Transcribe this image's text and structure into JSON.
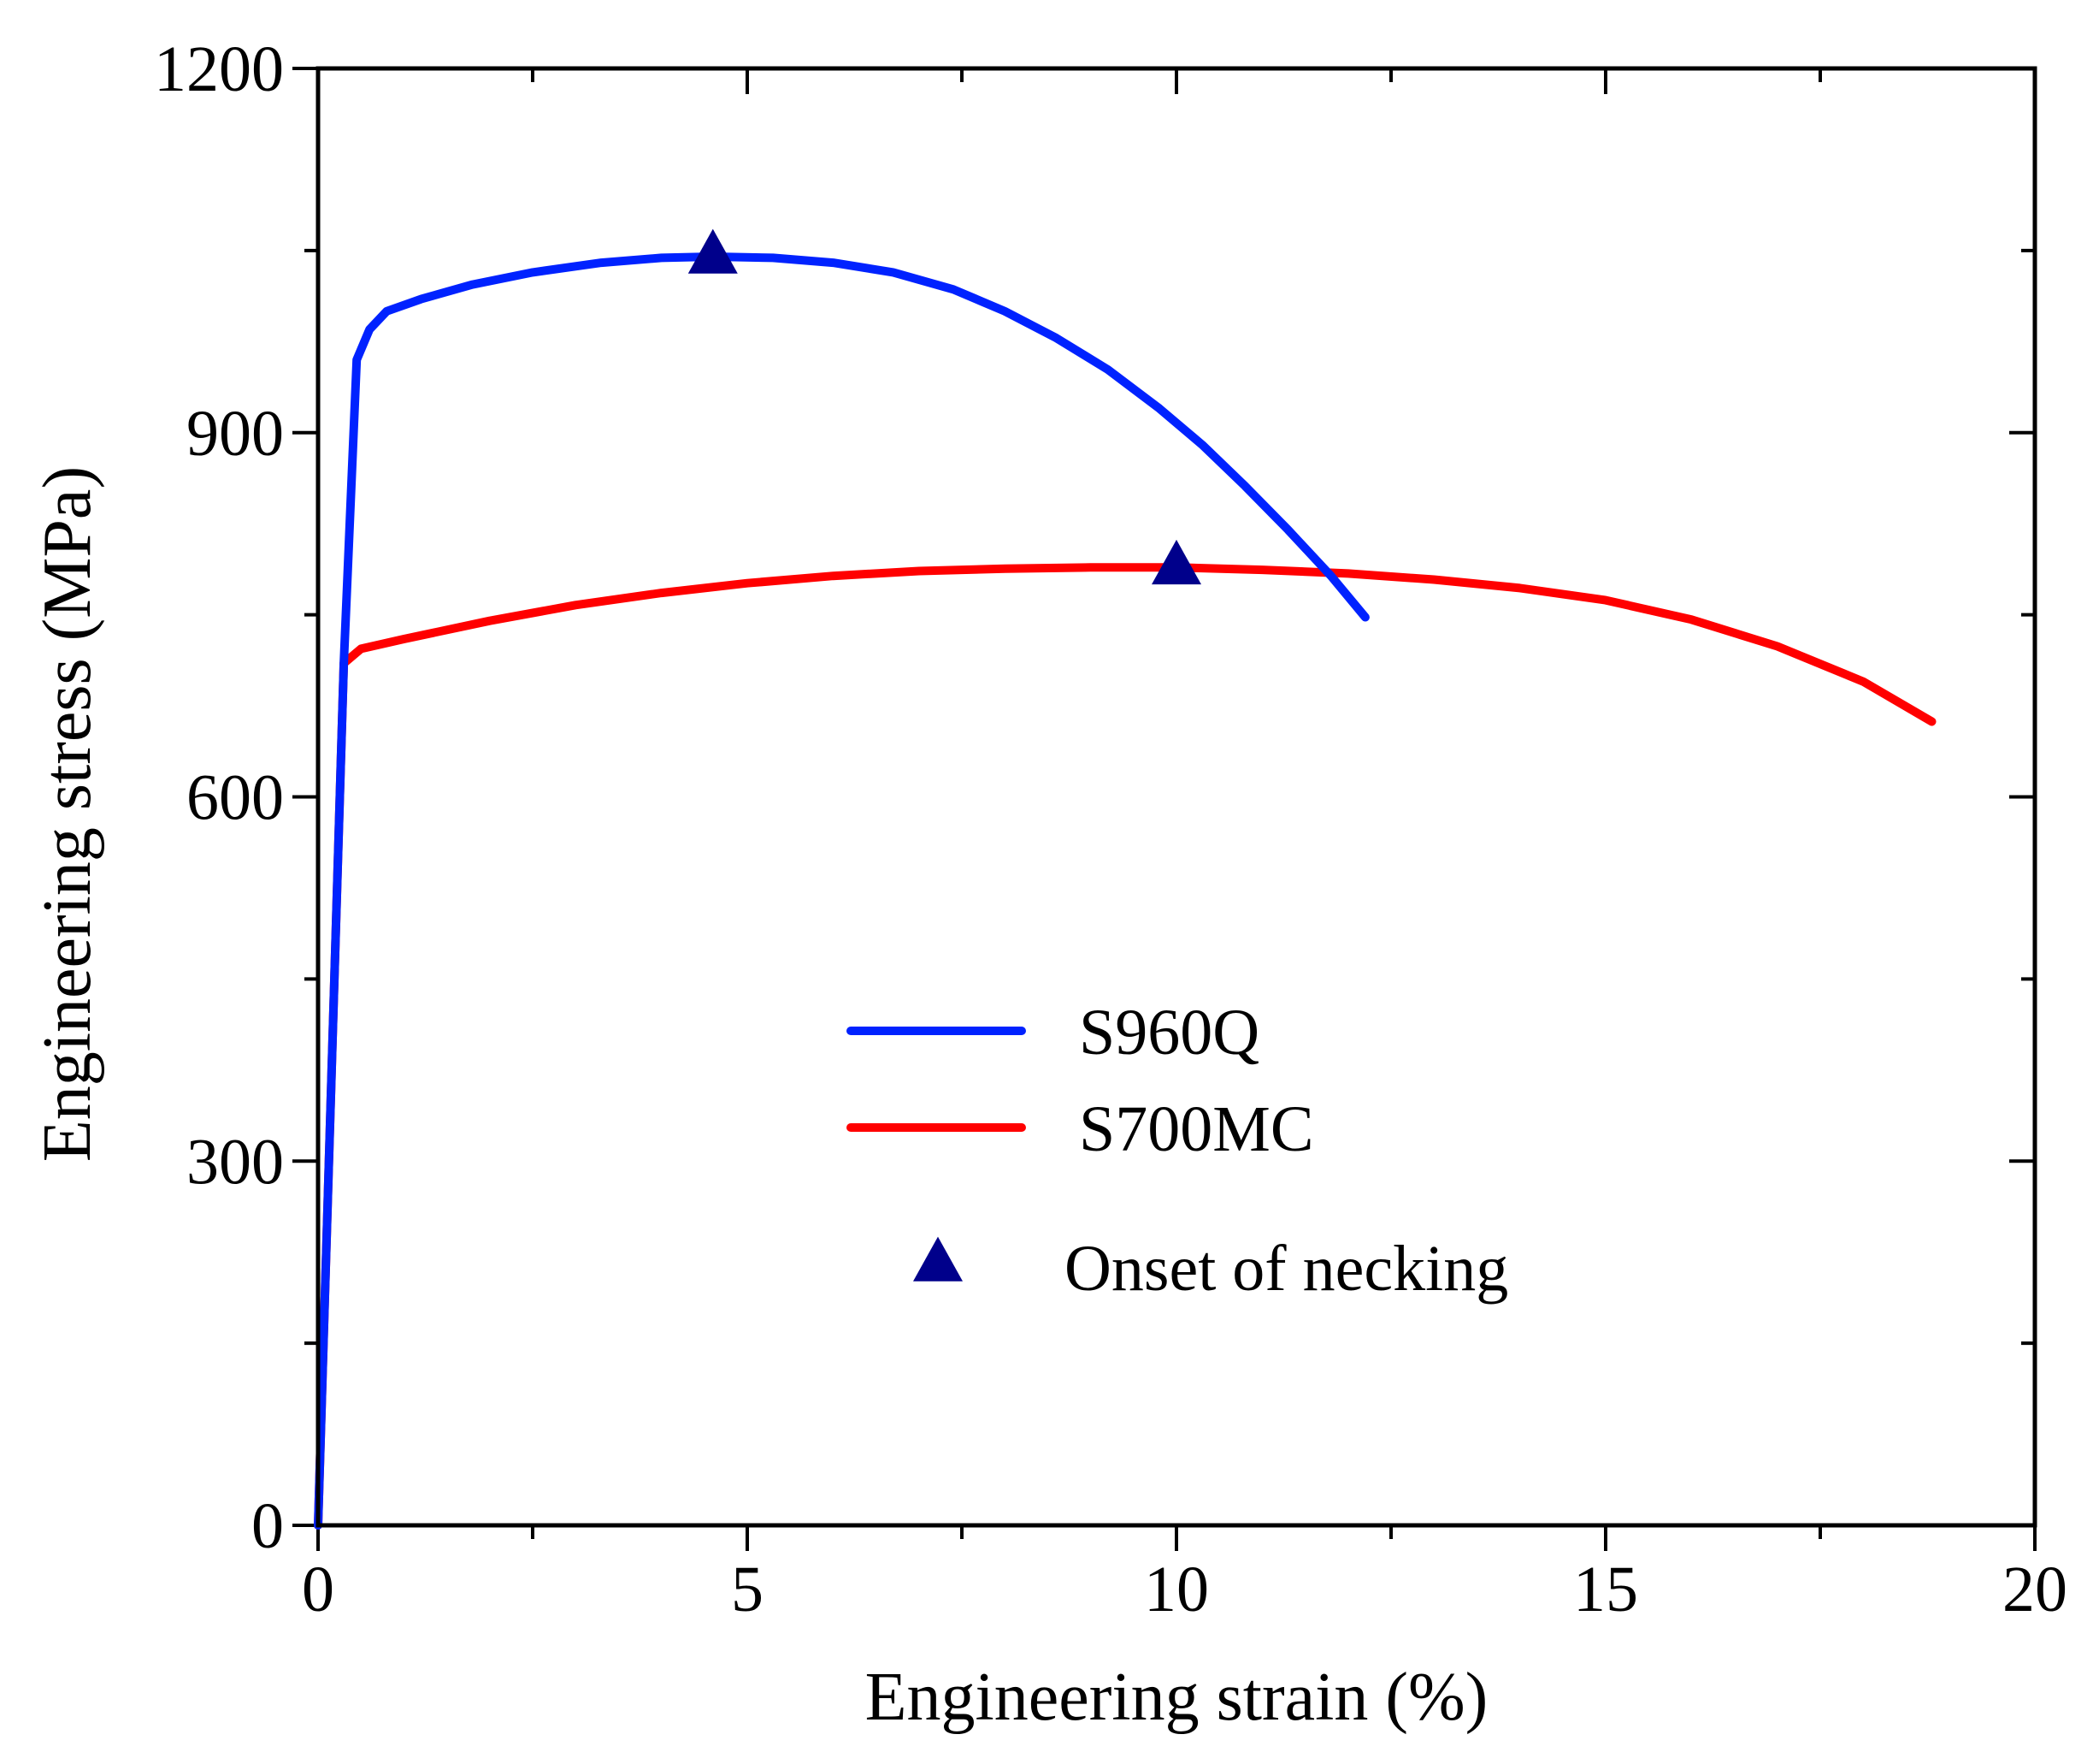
{
  "colors": {
    "s960q": "#0022ff",
    "s700mc": "#ff0000",
    "marker": "#00008b",
    "axis": "#000000"
  },
  "chart_data": {
    "type": "line",
    "title": "",
    "xlabel": "Engineering strain (%)",
    "ylabel": "Engineering stress (MPa)",
    "xlim": [
      0,
      20
    ],
    "ylim": [
      0,
      1200
    ],
    "xticks": [
      0,
      5,
      10,
      15,
      20
    ],
    "xtick_labels": [
      "0",
      "5",
      "10",
      "15",
      "20"
    ],
    "yticks": [
      0,
      300,
      600,
      900,
      1200
    ],
    "ytick_labels": [
      "0",
      "300",
      "600",
      "900",
      "1200"
    ],
    "grid": false,
    "legend_position": "center",
    "series": [
      {
        "name": "S960Q",
        "x": [
          0,
          0.3,
          0.45,
          0.6,
          0.8,
          1.2,
          1.8,
          2.5,
          3.3,
          4.0,
          4.6,
          5.3,
          6.0,
          6.7,
          7.4,
          8.0,
          8.6,
          9.2,
          9.8,
          10.3,
          10.8,
          11.3,
          11.8,
          12.2
        ],
        "y": [
          0,
          710,
          960,
          985,
          1000,
          1010,
          1022,
          1032,
          1040,
          1044,
          1045,
          1044,
          1040,
          1032,
          1018,
          1000,
          978,
          952,
          920,
          890,
          856,
          820,
          782,
          748
        ]
      },
      {
        "name": "S700MC",
        "x": [
          0,
          0.3,
          0.5,
          1.0,
          2.0,
          3.0,
          4.0,
          5.0,
          6.0,
          7.0,
          8.0,
          9.0,
          10.0,
          11.0,
          12.0,
          13.0,
          14.0,
          15.0,
          16.0,
          17.0,
          18.0,
          18.8
        ],
        "y": [
          0,
          710,
          722,
          730,
          745,
          758,
          768,
          776,
          782,
          786,
          788,
          789,
          789,
          787,
          784,
          779,
          772,
          762,
          746,
          724,
          695,
          662
        ]
      }
    ],
    "markers": {
      "name": "Onset of necking",
      "shape": "triangle",
      "points": [
        {
          "x": 4.6,
          "y": 1045
        },
        {
          "x": 10.0,
          "y": 789
        }
      ]
    },
    "legend": [
      "S960Q",
      "S700MC",
      "Onset of necking"
    ]
  }
}
